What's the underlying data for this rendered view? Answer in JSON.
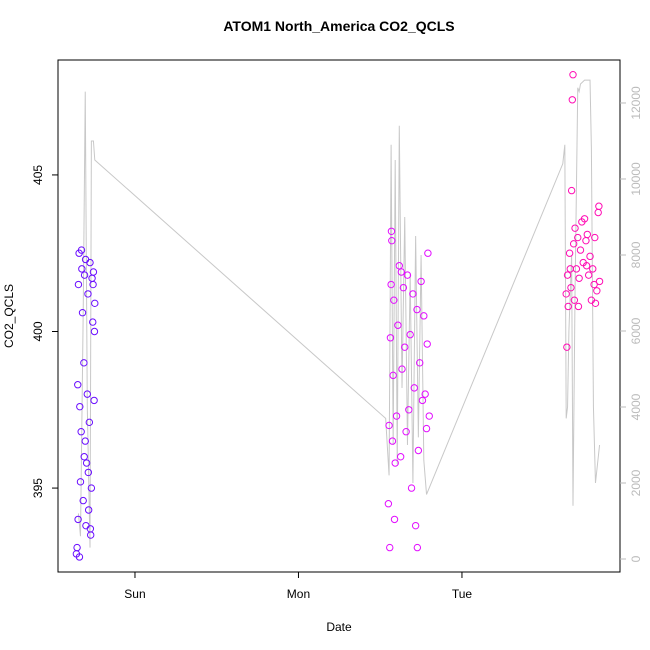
{
  "chart_data": {
    "type": "scatter",
    "title": "ATOM1 North_America CO2_QCLS",
    "x_label": "Date",
    "y_label": "CO2_QCLS",
    "xlim": [
      -11.3,
      71.2
    ],
    "xticks": [
      {
        "value": 0,
        "label": "Sun"
      },
      {
        "value": 24,
        "label": "Mon"
      },
      {
        "value": 48,
        "label": "Tue"
      }
    ],
    "ylim": [
      392.32,
      408.67
    ],
    "yticks": [
      395,
      400,
      405
    ],
    "y2lim": [
      -342,
      13131
    ],
    "y2ticks": [
      0,
      2000,
      4000,
      6000,
      8000,
      10000,
      12000
    ],
    "y2color": "#bbbbbb",
    "series": [
      {
        "color": "#6a0dff",
        "x": [
          -8.6,
          -8.5,
          -8.4,
          -8.3,
          -8.2,
          -8.1,
          -8.0,
          -7.9,
          -7.8,
          -7.7,
          -7.6,
          -7.5,
          -7.4,
          -7.3,
          -7.2,
          -7.1,
          -7.0,
          -6.9,
          -6.8,
          -6.7,
          -6.6,
          -6.5,
          -6.4,
          -6.3,
          -6.2,
          -6.1,
          -6.0,
          -5.9,
          -7.85,
          -8.35,
          -7.45,
          -6.55,
          -6.15,
          -5.95,
          -8.15,
          -7.25,
          -6.85
        ],
        "values": [
          392.9,
          393.1,
          398.3,
          401.5,
          402.5,
          397.6,
          395.2,
          396.8,
          402.0,
          400.6,
          394.6,
          399.0,
          401.8,
          396.5,
          393.8,
          395.8,
          398.0,
          401.2,
          394.3,
          397.1,
          402.2,
          393.5,
          395.0,
          401.7,
          400.3,
          401.9,
          397.8,
          400.9,
          402.6,
          394.0,
          396.0,
          393.7,
          401.5,
          400.0,
          392.8,
          402.3,
          395.5
        ]
      },
      {
        "color": "#e20dff",
        "x": [
          37.2,
          37.3,
          37.4,
          37.5,
          37.6,
          37.7,
          37.8,
          37.9,
          38.0,
          38.2,
          38.4,
          38.6,
          38.8,
          39.0,
          39.2,
          39.4,
          39.6,
          39.8,
          40.0,
          40.2,
          40.4,
          40.6,
          40.8,
          41.0,
          41.2,
          41.4,
          41.6,
          41.8,
          42.0,
          42.2,
          42.4,
          42.6,
          42.8,
          43.0,
          43.2,
          37.65,
          39.1,
          41.45,
          38.1,
          42.9
        ],
        "values": [
          394.5,
          397.0,
          393.1,
          399.8,
          401.5,
          402.9,
          396.5,
          398.6,
          401.0,
          395.8,
          397.3,
          400.2,
          402.1,
          396.0,
          398.8,
          401.4,
          399.5,
          396.8,
          401.8,
          397.5,
          399.9,
          395.0,
          401.2,
          398.2,
          393.8,
          400.7,
          396.2,
          399.0,
          401.6,
          397.8,
          400.5,
          398.0,
          396.9,
          402.5,
          397.3,
          403.2,
          401.9,
          393.1,
          394.0,
          399.6
        ]
      },
      {
        "color": "#ff0db4",
        "x": [
          63.3,
          63.4,
          63.5,
          63.6,
          63.8,
          64.0,
          64.1,
          64.2,
          64.3,
          64.4,
          64.5,
          64.6,
          64.8,
          65.0,
          65.2,
          65.4,
          65.6,
          65.8,
          66.0,
          66.2,
          66.4,
          66.6,
          66.8,
          67.0,
          67.2,
          67.4,
          67.6,
          67.8,
          68.0,
          68.2,
          66.3,
          65.1,
          63.9,
          67.5,
          68.1
        ],
        "values": [
          401.2,
          399.5,
          401.8,
          400.8,
          402.5,
          401.4,
          404.5,
          407.4,
          408.2,
          402.8,
          401.0,
          403.3,
          402.0,
          403.0,
          401.7,
          402.6,
          403.5,
          402.2,
          403.6,
          402.9,
          403.1,
          401.8,
          402.4,
          401.0,
          402.0,
          401.5,
          400.9,
          401.3,
          403.8,
          401.6,
          402.1,
          400.8,
          402.0,
          403.0,
          404.0
        ]
      },
      {
        "type": "line",
        "axis": "y2",
        "color": "#c8c8c8",
        "x": [
          -8.3,
          -8.0,
          -7.6,
          -7.3,
          -7.0,
          -6.6,
          -6.4,
          -6.1,
          -5.9,
          36.8,
          37.3,
          37.6,
          37.9,
          38.2,
          38.5,
          38.8,
          39.2,
          39.6,
          40.0,
          40.4,
          40.8,
          41.2,
          41.6,
          42.0,
          42.4,
          42.8,
          62.8,
          63.1,
          63.3,
          63.5,
          63.7,
          64.1,
          64.3,
          64.6,
          65.0,
          65.2,
          65.4,
          66.0,
          66.8,
          67.0,
          67.3,
          67.6,
          68.2
        ],
        "values": [
          1200,
          600,
          6500,
          12300,
          4000,
          300,
          11000,
          11000,
          10500,
          3700,
          2200,
          10900,
          3000,
          10500,
          2500,
          11400,
          4500,
          9000,
          3000,
          7500,
          2000,
          8500,
          3200,
          8000,
          2600,
          1700,
          10400,
          10900,
          3700,
          4000,
          6000,
          8000,
          1400,
          7000,
          12400,
          12300,
          12500,
          12600,
          12600,
          10800,
          4000,
          2000,
          3000
        ]
      }
    ]
  }
}
